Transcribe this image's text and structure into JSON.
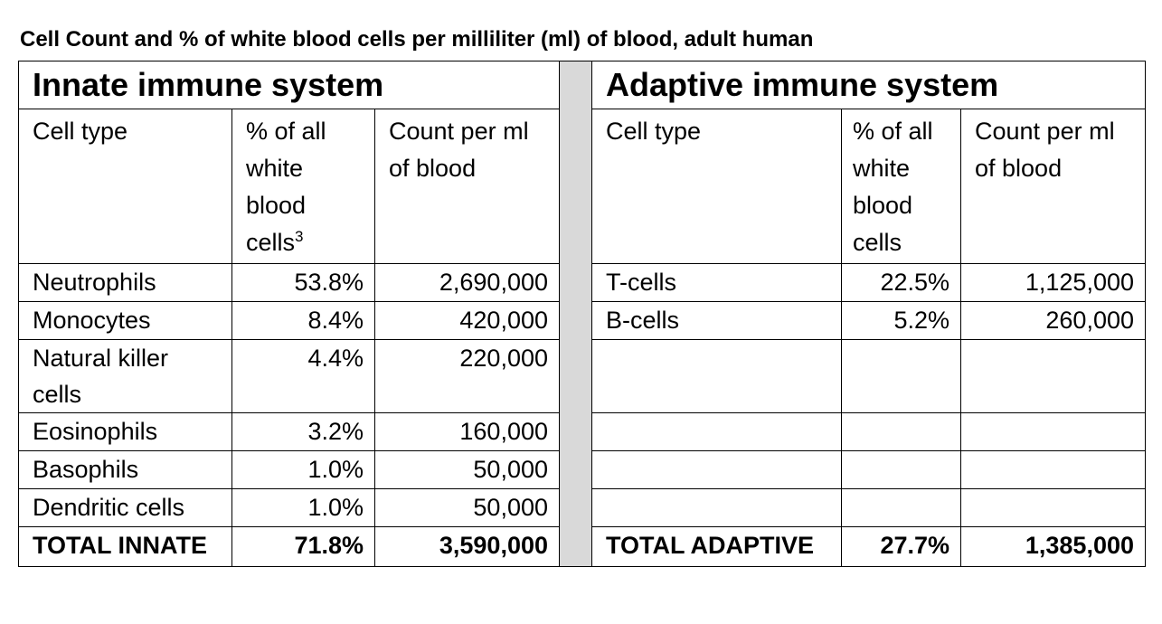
{
  "caption": "Cell Count and % of white blood cells per milliliter (ml) of blood, adult human",
  "innate": {
    "title": "Innate immune system",
    "headers": {
      "cell_type": "Cell type",
      "pct": "% of all white blood cells",
      "pct_sup": "3",
      "count": "Count per ml of blood"
    },
    "rows": [
      {
        "cell": "Neutrophils",
        "pct": "53.8%",
        "count": "2,690,000"
      },
      {
        "cell": "Monocytes",
        "pct": "8.4%",
        "count": "420,000"
      },
      {
        "cell": "Natural killer cells",
        "pct": "4.4%",
        "count": "220,000"
      },
      {
        "cell": "Eosinophils",
        "pct": "3.2%",
        "count": "160,000"
      },
      {
        "cell": "Basophils",
        "pct": "1.0%",
        "count": "50,000"
      },
      {
        "cell": "Dendritic cells",
        "pct": "1.0%",
        "count": "50,000"
      }
    ],
    "total": {
      "label": "TOTAL INNATE",
      "pct": "71.8%",
      "count": "3,590,000"
    }
  },
  "adaptive": {
    "title": "Adaptive immune system",
    "headers": {
      "cell_type": "Cell type",
      "pct": "% of all white blood cells",
      "count": "Count per ml of blood"
    },
    "rows": [
      {
        "cell": "T-cells",
        "pct": "22.5%",
        "count": "1,125,000"
      },
      {
        "cell": "B-cells",
        "pct": "5.2%",
        "count": "260,000"
      }
    ],
    "total": {
      "label": "TOTAL ADAPTIVE",
      "pct": "27.7%",
      "count": "1,385,000"
    }
  }
}
